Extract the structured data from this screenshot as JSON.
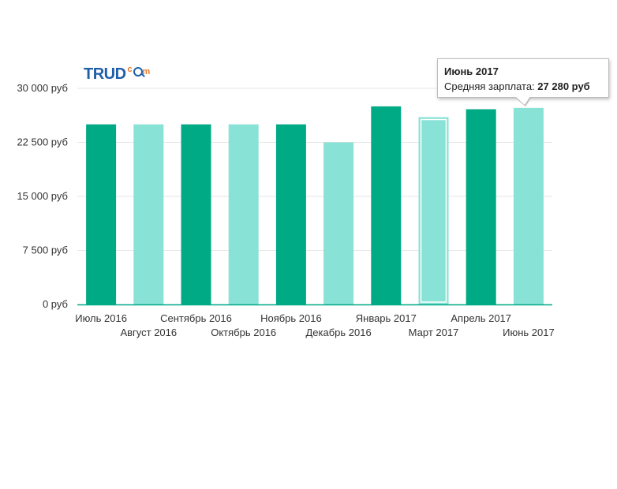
{
  "logo": {
    "text": "TRUD",
    "suffix_c": "c",
    "suffix_m": "m"
  },
  "tooltip": {
    "title": "Июнь 2017",
    "label": "Средняя зарплата:",
    "value": "27 280 руб"
  },
  "chart_data": {
    "type": "bar",
    "title": "",
    "xlabel": "",
    "ylabel": "",
    "ylim": [
      0,
      30000
    ],
    "y_ticks": [
      {
        "value": 0,
        "label": "0 руб"
      },
      {
        "value": 7500,
        "label": "7 500 руб"
      },
      {
        "value": 15000,
        "label": "15 000 руб"
      },
      {
        "value": 22500,
        "label": "22 500 руб"
      },
      {
        "value": 30000,
        "label": "30 000 руб"
      }
    ],
    "categories": [
      "Июль 2016",
      "Август 2016",
      "Сентябрь 2016",
      "Октябрь 2016",
      "Ноябрь 2016",
      "Декабрь 2016",
      "Январь 2017",
      "Март 2017",
      "Апрель 2017",
      "Июнь 2017"
    ],
    "values": [
      25000,
      25000,
      25000,
      25000,
      25000,
      22500,
      27500,
      26000,
      27100,
      27280
    ],
    "colors": {
      "dark": "#00aa85",
      "light": "#88e2d5",
      "grid": "#e6e6e6",
      "axis": "#00aa85",
      "highlight_border": "#ffffff"
    },
    "highlighted_index": 7,
    "grid": true
  }
}
